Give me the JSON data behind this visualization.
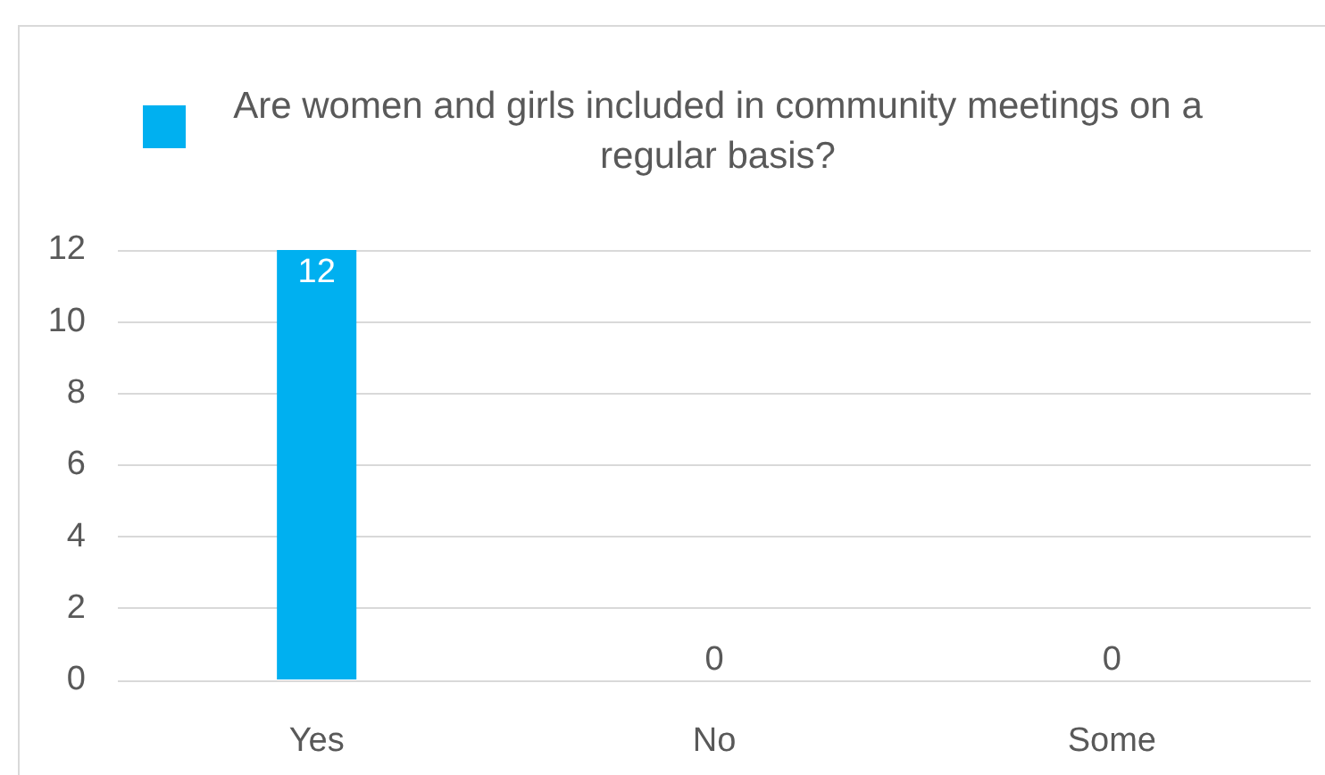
{
  "chart_data": {
    "type": "bar",
    "categories": [
      "Yes",
      "No",
      "Some"
    ],
    "series": [
      {
        "name": "Are women and girls included in community meetings on a regular basis?",
        "color": "#00b0f0",
        "values": [
          12,
          0,
          0
        ]
      }
    ],
    "ylim": [
      0,
      12
    ],
    "yticks": [
      0,
      2,
      4,
      6,
      8,
      10,
      12
    ],
    "grid": "y",
    "legend": "top",
    "data_labels": true
  }
}
